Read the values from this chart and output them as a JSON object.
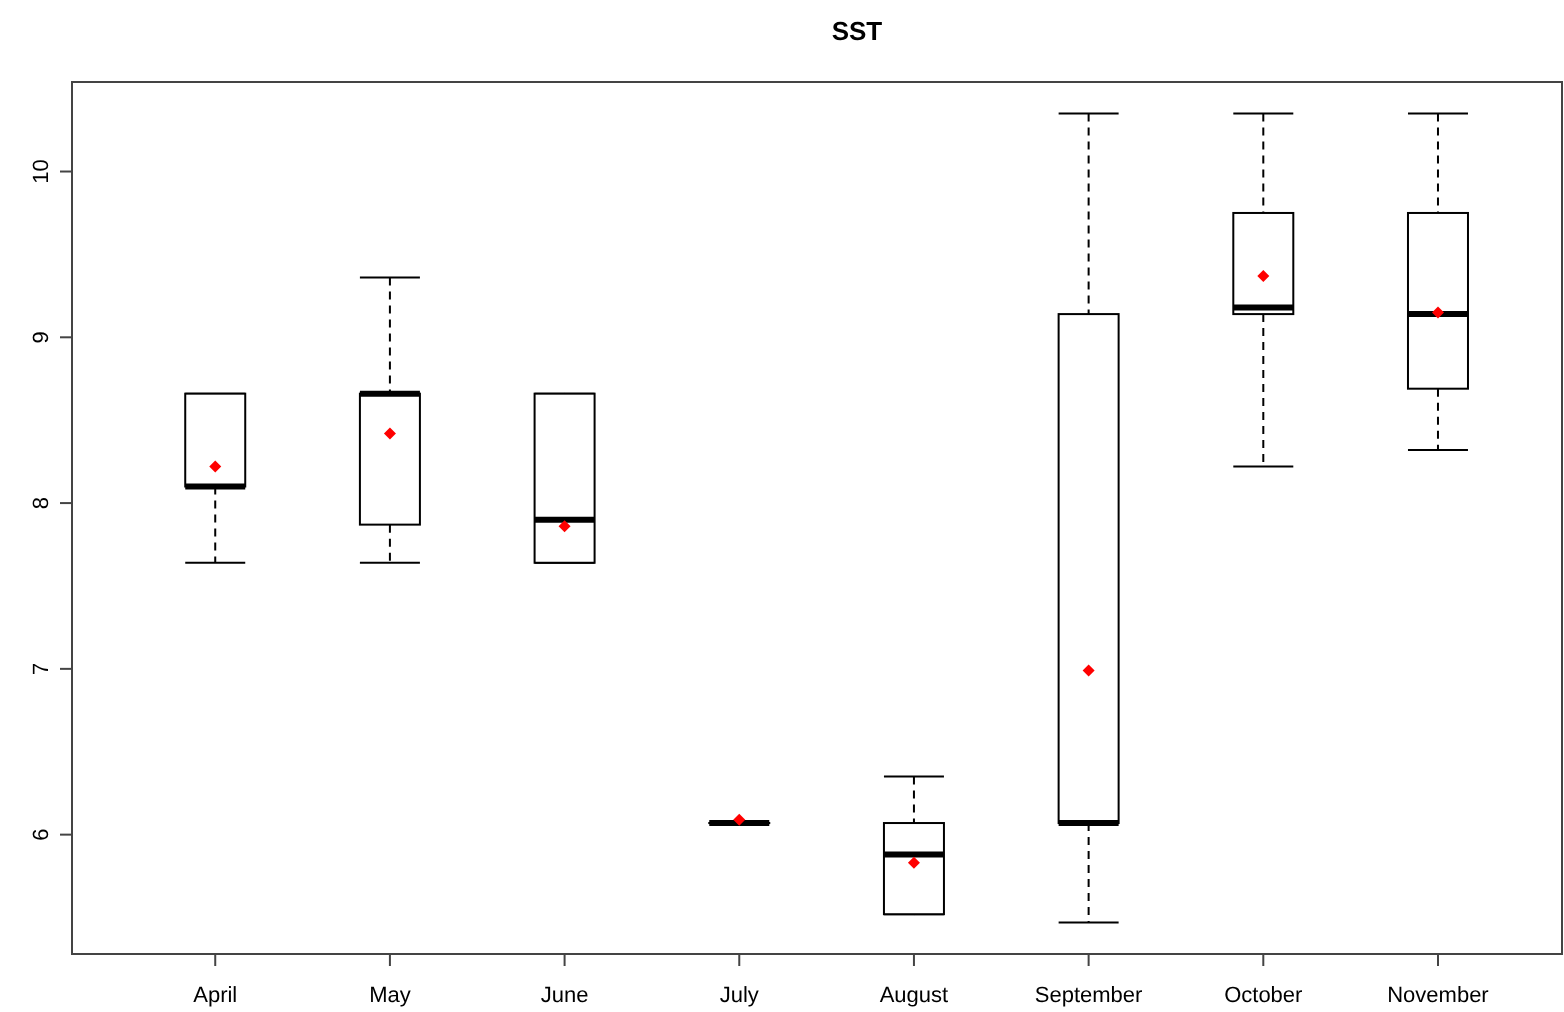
{
  "chart_data": {
    "type": "box",
    "title": "SST",
    "categories": [
      "April",
      "May",
      "June",
      "July",
      "August",
      "September",
      "October",
      "November"
    ],
    "ylim": [
      5.28,
      10.54
    ],
    "yticks": [
      6,
      7,
      8,
      9,
      10
    ],
    "grid": false,
    "marker": "diamond",
    "series": [
      {
        "boxes": [
          {
            "low": 7.64,
            "q1": 8.1,
            "median": 8.1,
            "q3": 8.66,
            "high": 8.66
          },
          {
            "low": 7.64,
            "q1": 7.87,
            "median": 8.66,
            "q3": 8.66,
            "high": 9.36
          },
          {
            "low": 7.64,
            "q1": 7.64,
            "median": 7.9,
            "q3": 8.66,
            "high": 8.66
          },
          {
            "low": 6.07,
            "q1": 6.07,
            "median": 6.07,
            "q3": 6.07,
            "high": 6.07
          },
          {
            "low": 5.52,
            "q1": 5.52,
            "median": 5.88,
            "q3": 6.07,
            "high": 6.35
          },
          {
            "low": 5.47,
            "q1": 6.07,
            "median": 6.07,
            "q3": 9.14,
            "high": 10.35
          },
          {
            "low": 8.22,
            "q1": 9.14,
            "median": 9.18,
            "q3": 9.75,
            "high": 10.35
          },
          {
            "low": 8.32,
            "q1": 8.69,
            "median": 9.14,
            "q3": 9.75,
            "high": 10.35
          }
        ]
      },
      {
        "type": "scatter",
        "color": "#ff0000",
        "x": [
          "April",
          "May",
          "June",
          "July",
          "August",
          "September",
          "October",
          "November"
        ],
        "values": [
          8.22,
          8.42,
          7.86,
          6.09,
          5.83,
          6.99,
          9.37,
          9.15
        ]
      }
    ]
  }
}
